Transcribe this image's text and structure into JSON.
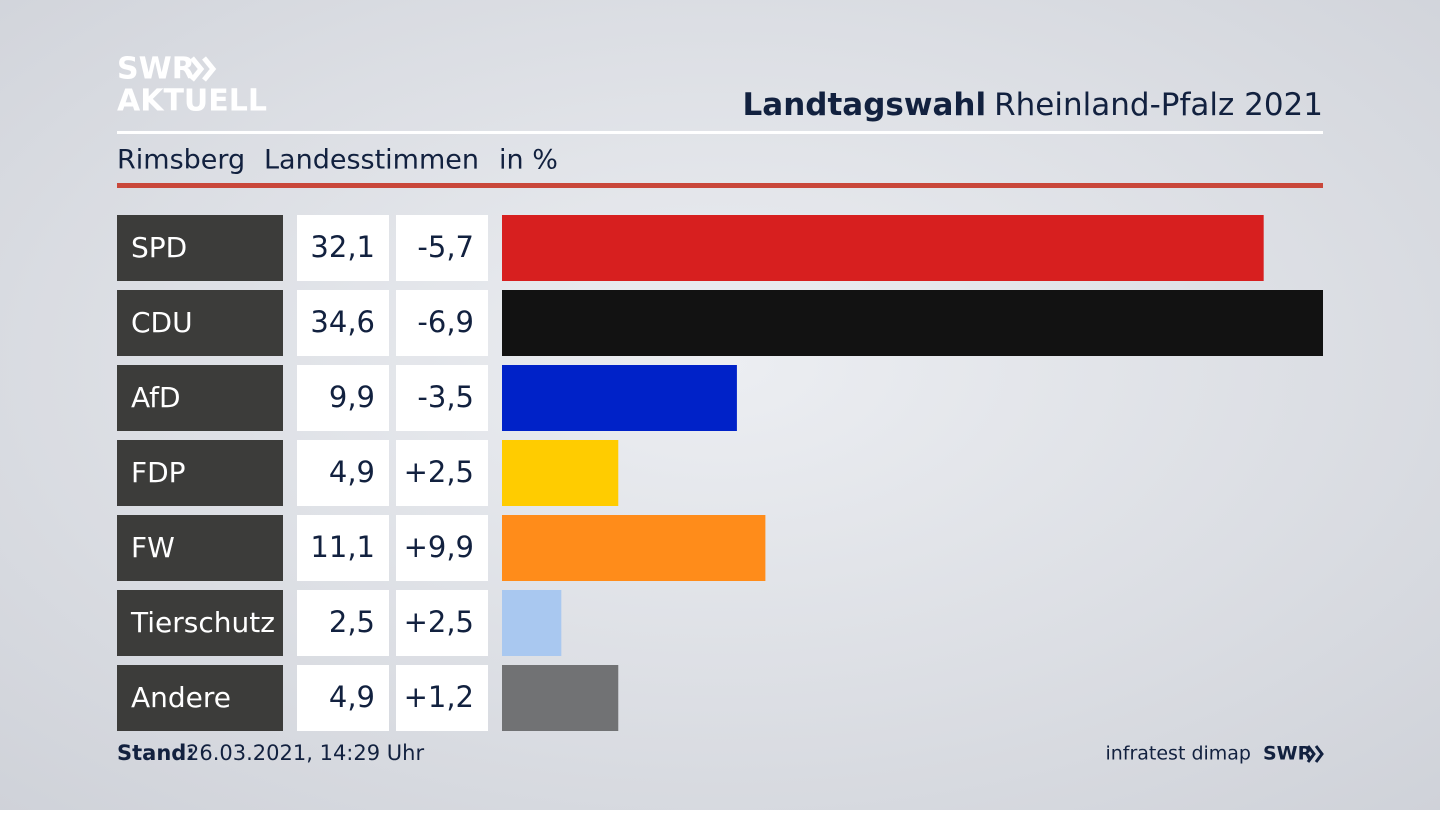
{
  "chart_data": {
    "type": "bar",
    "logo": [
      "SWR",
      "AKTUELL"
    ],
    "title": "Landtagswahl",
    "title_rest": "Rheinland-Pfalz 2021",
    "subtitle": [
      "Rimsberg",
      "Landesstimmen",
      "in %"
    ],
    "categories": [
      "SPD",
      "CDU",
      "AfD",
      "FDP",
      "FW",
      "Tierschutz",
      "Andere"
    ],
    "values": [
      32.1,
      34.6,
      9.9,
      4.9,
      11.1,
      2.5,
      4.9
    ],
    "value_labels": [
      "32,1",
      "34,6",
      "9,9",
      "4,9",
      "11,1",
      "2,5",
      "4,9"
    ],
    "changes": [
      -5.7,
      -6.9,
      -3.5,
      2.5,
      9.9,
      2.5,
      1.2
    ],
    "change_labels": [
      "-5,7",
      "-6,9",
      "-3,5",
      "+2,5",
      "+9,9",
      "+2,5",
      "+1,2"
    ],
    "colors": [
      "#d71f1f",
      "#121212",
      "#0022c8",
      "#ffcc00",
      "#ff8c1a",
      "#a9c8f0",
      "#717274"
    ],
    "footer_label": "Stand:",
    "footer_date": "26.03.2021, 14:29 Uhr",
    "source": "infratest dimap",
    "source_logo": "SWR"
  }
}
